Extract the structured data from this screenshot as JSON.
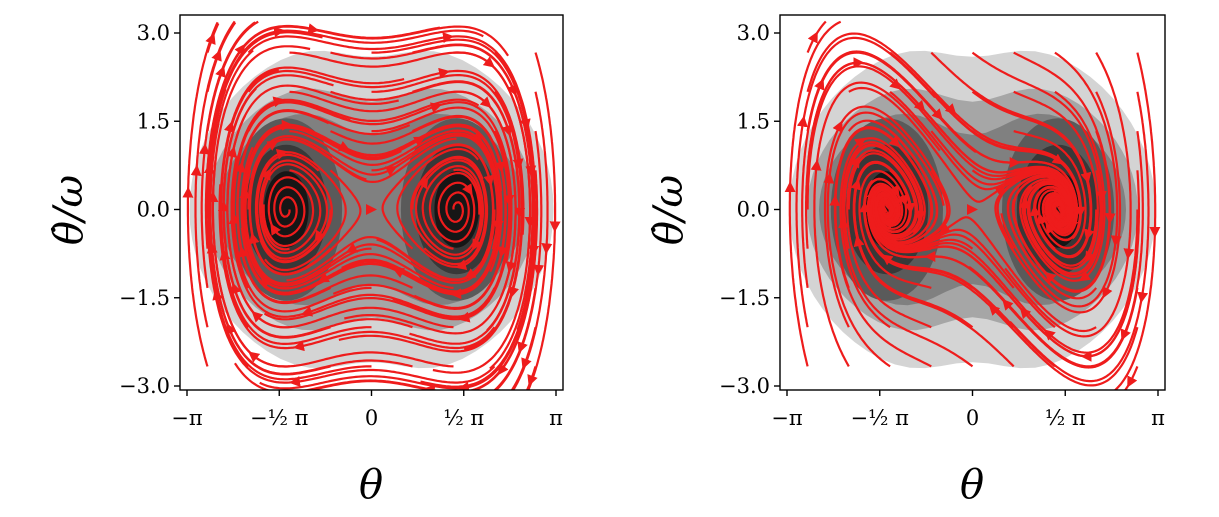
{
  "chart_data": [
    {
      "type": "streamplot",
      "panel": "left",
      "xlabel": "θ",
      "ylabel": "θ̇/ω",
      "xlim": [
        -3.1416,
        3.1416
      ],
      "ylim": [
        -3.15,
        3.15
      ],
      "xticks": [
        {
          "value": -3.1416,
          "label": "−π"
        },
        {
          "value": -1.5708,
          "label": "−½ π"
        },
        {
          "value": 0,
          "label": "0"
        },
        {
          "value": 1.5708,
          "label": "½ π"
        },
        {
          "value": 3.1416,
          "label": "π"
        }
      ],
      "yticks": [
        {
          "value": 3.0,
          "label": "3.0"
        },
        {
          "value": 1.5,
          "label": "1.5"
        },
        {
          "value": 0.0,
          "label": "0.0"
        },
        {
          "value": -1.5,
          "label": "−1.5"
        },
        {
          "value": -3.0,
          "label": "−3.0"
        }
      ],
      "dynamics": "conservative double-well",
      "wells": [
        [
          -1.45,
          0.0
        ],
        [
          1.45,
          0.0
        ]
      ],
      "saddle": [
        0.0,
        0.0
      ],
      "density_levels": 5,
      "stream_color": "#ee1c1c",
      "density_colors": [
        "#d4d4d4",
        "#a6a6a6",
        "#808080",
        "#5a5a5a",
        "#383838",
        "#161616"
      ],
      "grid": false,
      "legend": "none"
    },
    {
      "type": "streamplot",
      "panel": "right",
      "xlabel": "θ",
      "ylabel": "θ̇/ω",
      "xlim": [
        -3.1416,
        3.1416
      ],
      "ylim": [
        -3.15,
        3.15
      ],
      "xticks": [
        {
          "value": -3.1416,
          "label": "−π"
        },
        {
          "value": -1.5708,
          "label": "−½ π"
        },
        {
          "value": 0,
          "label": "0"
        },
        {
          "value": 1.5708,
          "label": "½ π"
        },
        {
          "value": 3.1416,
          "label": "π"
        }
      ],
      "yticks": [
        {
          "value": 3.0,
          "label": "3.0"
        },
        {
          "value": 1.5,
          "label": "1.5"
        },
        {
          "value": 0.0,
          "label": "0.0"
        },
        {
          "value": -1.5,
          "label": "−1.5"
        },
        {
          "value": -3.0,
          "label": "−3.0"
        }
      ],
      "dynamics": "damped double-well (spiral sinks)",
      "wells": [
        [
          -1.45,
          0.0
        ],
        [
          1.45,
          0.0
        ]
      ],
      "saddle": [
        0.0,
        0.0
      ],
      "density_levels": 5,
      "stream_color": "#ee1c1c",
      "density_colors": [
        "#d4d4d4",
        "#a6a6a6",
        "#808080",
        "#5a5a5a",
        "#383838",
        "#161616"
      ],
      "grid": false,
      "legend": "none"
    }
  ]
}
